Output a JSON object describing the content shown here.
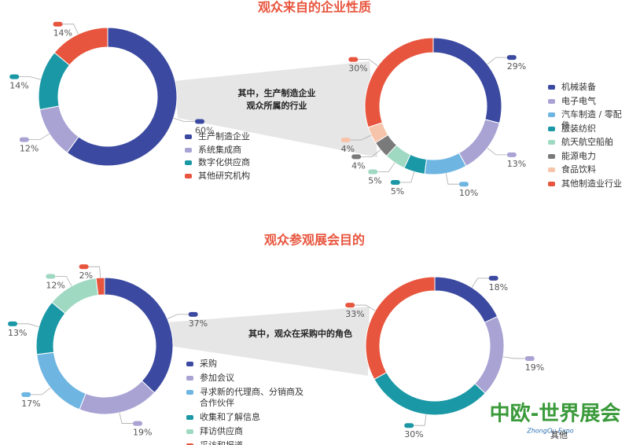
{
  "chart_data": [
    {
      "type": "pie",
      "title": "观众来自的企业性质",
      "categories": [
        "生产制造企业",
        "系统集成商",
        "数字化供应商",
        "其他研究机构"
      ],
      "values": [
        60,
        12,
        14,
        14
      ],
      "value_labels": [
        "60%",
        "12%",
        "14%",
        "14%"
      ],
      "colors": [
        "#3b4aa0",
        "#a9a3d4",
        "#1b98a6",
        "#e8553e"
      ]
    },
    {
      "type": "pie",
      "annotation": [
        "其中，生产制造企业",
        "观众所属的行业"
      ],
      "categories": [
        "机械装备",
        "电子电气",
        "汽车制造 / 零配件",
        "服装纺织",
        "航天航空船舶",
        "能源电力",
        "食品饮料",
        "其他制造业行业"
      ],
      "values": [
        29,
        13,
        10,
        5,
        5,
        4,
        4,
        30
      ],
      "value_labels": [
        "29%",
        "13%",
        "10%",
        "5%",
        "5%",
        "4%",
        "4%",
        "30%"
      ],
      "colors": [
        "#3b4aa0",
        "#a9a3d4",
        "#6fb5e2",
        "#1b98a6",
        "#9fd9c2",
        "#7a7a7a",
        "#f6c4aa",
        "#e8553e"
      ]
    },
    {
      "type": "pie",
      "title": "观众参观展会目的",
      "categories": [
        "采购",
        "参加会议",
        "寻求新的代理商、分销商及合作伙伴",
        "收集和了解信息",
        "拜访供应商",
        "采访和报道"
      ],
      "values": [
        37,
        19,
        17,
        13,
        12,
        2
      ],
      "value_labels": [
        "37%",
        "19%",
        "17%",
        "13%",
        "12%",
        "2%"
      ],
      "colors": [
        "#3b4aa0",
        "#a9a3d4",
        "#6fb5e2",
        "#1b98a6",
        "#9fd9c2",
        "#e8553e"
      ]
    },
    {
      "type": "pie",
      "annotation": [
        "其中，观众在采购中的角色"
      ],
      "categories": [
        null,
        null,
        null,
        "其他"
      ],
      "values": [
        18,
        19,
        30,
        33
      ],
      "value_labels": [
        "18%",
        "19%",
        "30%",
        "33%"
      ],
      "colors": [
        "#3b4aa0",
        "#a9a3d4",
        "#1b98a6",
        "#e8553e"
      ]
    }
  ],
  "logo": {
    "text": "中欧-世界展会",
    "subtitle": "ZhongOu Expo"
  }
}
